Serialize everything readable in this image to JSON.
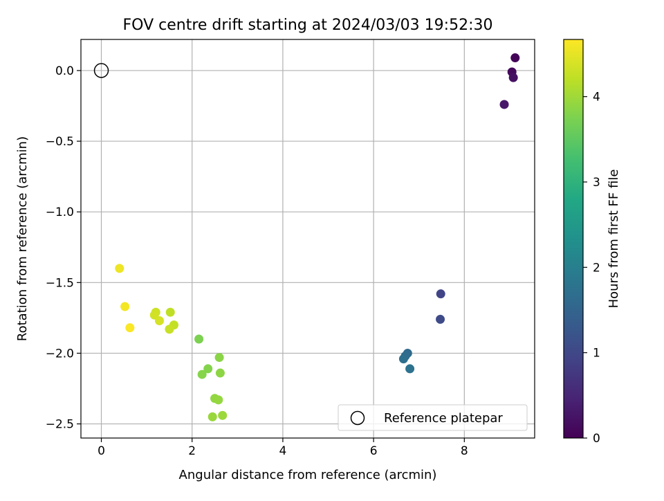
{
  "chart_data": {
    "type": "scatter",
    "title": "FOV centre drift starting at 2024/03/03 19:52:30",
    "xlabel": "Angular distance from reference (arcmin)",
    "ylabel": "Rotation from reference (arcmin)",
    "xlim": [
      -0.45,
      9.55
    ],
    "ylim": [
      -2.6,
      0.22
    ],
    "xticks": [
      0,
      2,
      4,
      6,
      8
    ],
    "yticks": [
      0.0,
      -0.5,
      -1.0,
      -1.5,
      -2.0,
      -2.5
    ],
    "xtick_labels": [
      "0",
      "2",
      "4",
      "6",
      "8"
    ],
    "ytick_labels": [
      "0.0",
      "−0.5",
      "−1.0",
      "−1.5",
      "−2.0",
      "−2.5"
    ],
    "grid": true,
    "colormap": "viridis",
    "colorbar": {
      "label": "Hours from first FF file",
      "range": [
        0,
        4.67
      ],
      "ticks": [
        0,
        1,
        2,
        3,
        4
      ],
      "tick_labels": [
        "0",
        "1",
        "2",
        "3",
        "4"
      ]
    },
    "reference": {
      "label": "Reference platepar",
      "x": 0.0,
      "y": 0.0
    },
    "legend": {
      "position": "lower-right",
      "entries": [
        "Reference platepar"
      ]
    },
    "points": [
      {
        "x": 9.12,
        "y": 0.09,
        "hours": 0.05
      },
      {
        "x": 9.05,
        "y": -0.01,
        "hours": 0.12
      },
      {
        "x": 9.08,
        "y": -0.05,
        "hours": 0.2
      },
      {
        "x": 8.88,
        "y": -0.24,
        "hours": 0.3
      },
      {
        "x": 7.48,
        "y": -1.58,
        "hours": 0.95
      },
      {
        "x": 7.47,
        "y": -1.76,
        "hours": 1.05
      },
      {
        "x": 6.75,
        "y": -2.0,
        "hours": 1.6
      },
      {
        "x": 6.7,
        "y": -2.02,
        "hours": 1.65
      },
      {
        "x": 6.66,
        "y": -2.04,
        "hours": 1.7
      },
      {
        "x": 6.8,
        "y": -2.11,
        "hours": 1.75
      },
      {
        "x": 2.15,
        "y": -1.9,
        "hours": 3.75
      },
      {
        "x": 2.35,
        "y": -2.11,
        "hours": 3.8
      },
      {
        "x": 2.22,
        "y": -2.15,
        "hours": 3.82
      },
      {
        "x": 2.6,
        "y": -2.03,
        "hours": 3.85
      },
      {
        "x": 2.62,
        "y": -2.14,
        "hours": 3.87
      },
      {
        "x": 2.5,
        "y": -2.32,
        "hours": 3.9
      },
      {
        "x": 2.58,
        "y": -2.33,
        "hours": 3.92
      },
      {
        "x": 2.45,
        "y": -2.45,
        "hours": 3.95
      },
      {
        "x": 2.67,
        "y": -2.44,
        "hours": 3.97
      },
      {
        "x": 1.52,
        "y": -1.71,
        "hours": 4.22
      },
      {
        "x": 1.6,
        "y": -1.8,
        "hours": 4.25
      },
      {
        "x": 1.5,
        "y": -1.83,
        "hours": 4.28
      },
      {
        "x": 1.2,
        "y": -1.71,
        "hours": 4.32
      },
      {
        "x": 1.17,
        "y": -1.73,
        "hours": 4.35
      },
      {
        "x": 1.28,
        "y": -1.77,
        "hours": 4.38
      },
      {
        "x": 0.4,
        "y": -1.4,
        "hours": 4.55
      },
      {
        "x": 0.52,
        "y": -1.67,
        "hours": 4.6
      },
      {
        "x": 0.63,
        "y": -1.82,
        "hours": 4.65
      }
    ]
  }
}
